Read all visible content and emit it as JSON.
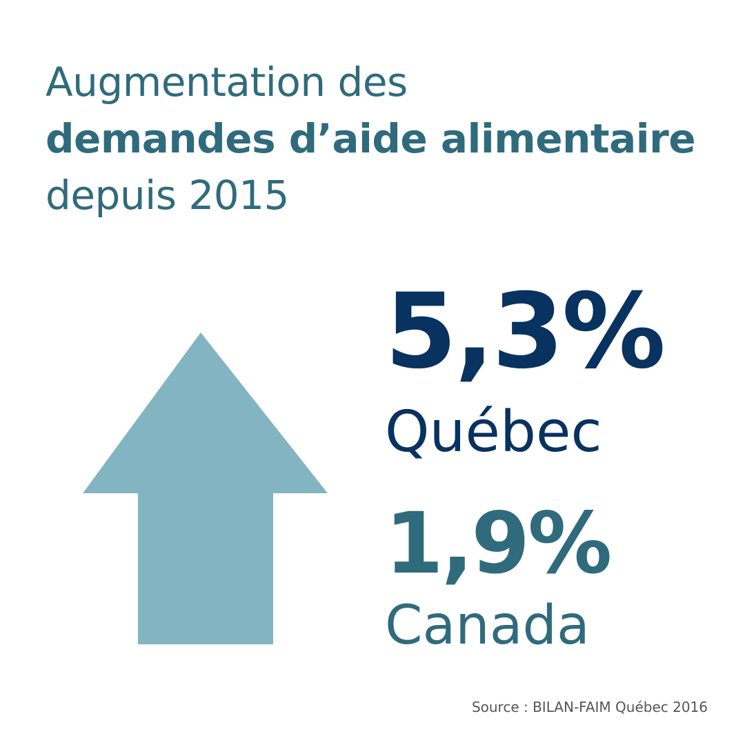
{
  "headline": {
    "line1": "Augmentation des",
    "line2": "demandes d’aide alimentaire",
    "line3": "depuis 2015"
  },
  "graphic": {
    "icon": "up-arrow-icon",
    "color": "#82b4c2"
  },
  "stats": [
    {
      "value": "5,3%",
      "label": "Québec",
      "color": "#08325f"
    },
    {
      "value": "1,9%",
      "label": "Canada",
      "color": "#2f6b7c"
    }
  ],
  "source": "Source : BILAN-FAIM Québec 2016",
  "colors": {
    "headline": "#2f6b7c",
    "source": "#555555",
    "background": "#ffffff"
  }
}
